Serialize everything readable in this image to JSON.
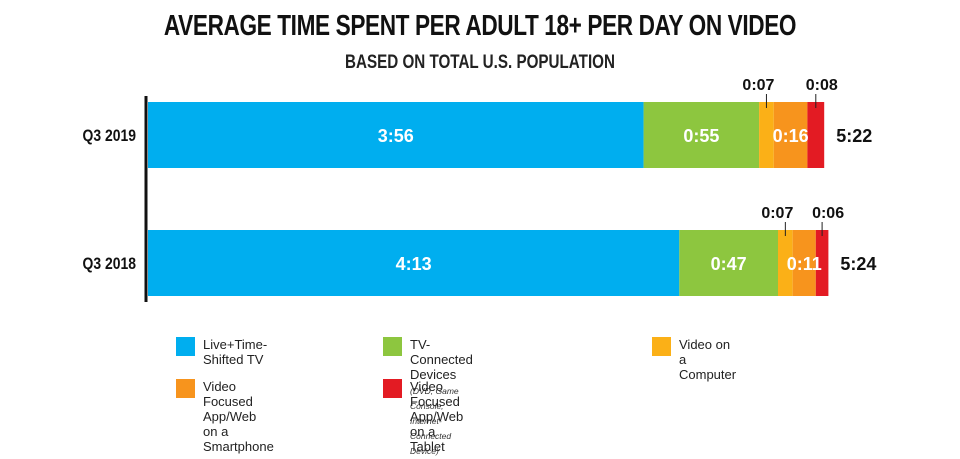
{
  "title": "AVERAGE TIME SPENT PER ADULT 18+ PER DAY ON VIDEO",
  "subtitle": "BASED ON TOTAL U.S. POPULATION",
  "chart_data": {
    "type": "bar",
    "orientation": "horizontal",
    "stacked": true,
    "categories": [
      "Q3 2019",
      "Q3 2018"
    ],
    "units": "hours:minutes",
    "series": [
      {
        "name": "Live+Time-Shifted TV",
        "color": "#00aeef",
        "values": [
          "3:56",
          "4:13"
        ],
        "minutes": [
          236,
          253
        ]
      },
      {
        "name": "TV-Connected Devices",
        "color": "#8dc63f",
        "values": [
          "0:55",
          "0:47"
        ],
        "minutes": [
          55,
          47
        ]
      },
      {
        "name": "Video on a Computer",
        "color": "#fbb017",
        "values": [
          "0:07",
          "0:07"
        ],
        "minutes": [
          7,
          7
        ]
      },
      {
        "name": "Video Focused App/Web on a Smartphone",
        "color": "#f7941d",
        "values": [
          "0:16",
          "0:11"
        ],
        "minutes": [
          16,
          11
        ]
      },
      {
        "name": "Video Focused App/Web on a Tablet",
        "color": "#e31b23",
        "values": [
          "0:08",
          "0:06"
        ],
        "minutes": [
          8,
          6
        ]
      }
    ],
    "totals": [
      "5:22",
      "5:24"
    ],
    "legend_position": "bottom",
    "grid": false
  },
  "legend": [
    {
      "label": "Live+Time-Shifted TV",
      "note": "",
      "color": "#00aeef"
    },
    {
      "label": "TV-Connected Devices",
      "note": "(DVD, Game Console, Internet-Connected Device)",
      "color": "#8dc63f"
    },
    {
      "label": "Video on a Computer",
      "note": "",
      "color": "#fbb017"
    },
    {
      "label": "Video Focused App/Web on a Smartphone",
      "note": "",
      "color": "#f7941d"
    },
    {
      "label": "Video Focused App/Web on a Tablet",
      "note": "",
      "color": "#e31b23"
    }
  ]
}
